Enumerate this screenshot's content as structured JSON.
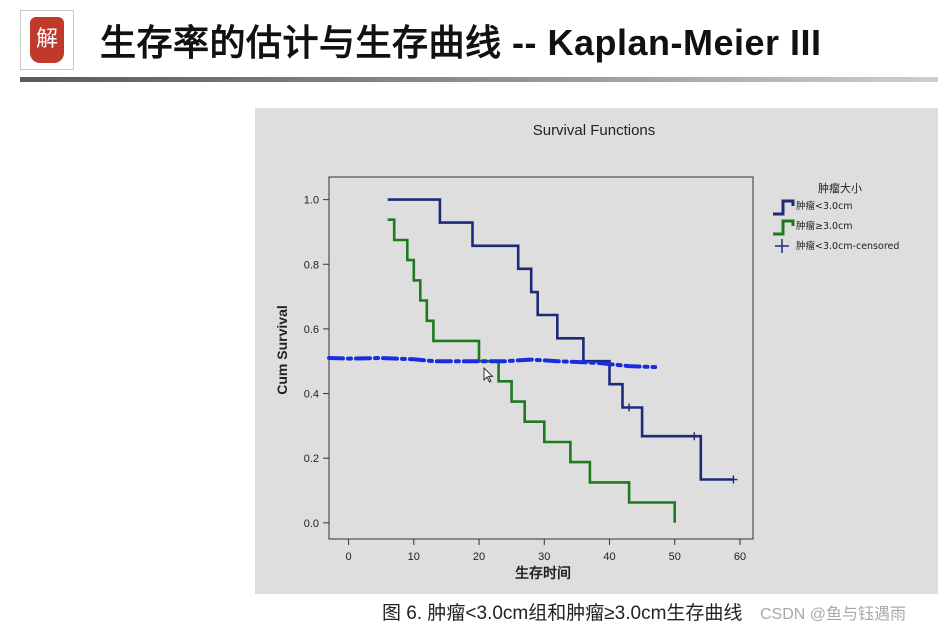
{
  "slide": {
    "title": "生存率的估计与生存曲线 -- Kaplan-Meier III",
    "logo_text": "解",
    "caption": "图 6. 肿瘤<3.0cm组和肿瘤≥3.0cm生存曲线",
    "watermark": "CSDN @鱼与钰遇雨",
    "colors": {
      "underline": "#7a7a7a",
      "panel_bg": "#dedede",
      "annotation": "#1a2be0"
    }
  },
  "chart_data": {
    "type": "line",
    "title": "Survival Functions",
    "xlabel": "生存时间",
    "ylabel": "Cum Survival",
    "xlim": [
      -3,
      62
    ],
    "ylim": [
      -0.05,
      1.07
    ],
    "xticks": [
      0,
      10,
      20,
      30,
      40,
      50,
      60
    ],
    "yticks": [
      0.0,
      0.2,
      0.4,
      0.6,
      0.8,
      1.0
    ],
    "legend": {
      "title": "肿瘤大小",
      "placement": "right",
      "entries": [
        "肿瘤<3.0cm",
        "肿瘤≥3.0cm",
        "肿瘤<3.0cm-censored"
      ]
    },
    "series": [
      {
        "name": "肿瘤<3.0cm",
        "color": "#1c2a7a",
        "style": "step",
        "points": [
          [
            6,
            1.0
          ],
          [
            14,
            1.0
          ],
          [
            14,
            0.929
          ],
          [
            19,
            0.929
          ],
          [
            19,
            0.857
          ],
          [
            26,
            0.857
          ],
          [
            26,
            0.786
          ],
          [
            28,
            0.786
          ],
          [
            28,
            0.714
          ],
          [
            29,
            0.714
          ],
          [
            29,
            0.643
          ],
          [
            32,
            0.643
          ],
          [
            32,
            0.571
          ],
          [
            36,
            0.571
          ],
          [
            36,
            0.5
          ],
          [
            40,
            0.5
          ],
          [
            40,
            0.429
          ],
          [
            42,
            0.429
          ],
          [
            42,
            0.357
          ],
          [
            45,
            0.357
          ],
          [
            45,
            0.268
          ],
          [
            54,
            0.268
          ],
          [
            54,
            0.134
          ],
          [
            59,
            0.134
          ]
        ]
      },
      {
        "name": "肿瘤≥3.0cm",
        "color": "#1e7a1e",
        "style": "step",
        "points": [
          [
            6,
            0.938
          ],
          [
            7,
            0.938
          ],
          [
            7,
            0.875
          ],
          [
            9,
            0.875
          ],
          [
            9,
            0.813
          ],
          [
            10,
            0.813
          ],
          [
            10,
            0.75
          ],
          [
            11,
            0.75
          ],
          [
            11,
            0.688
          ],
          [
            12,
            0.688
          ],
          [
            12,
            0.625
          ],
          [
            13,
            0.625
          ],
          [
            13,
            0.563
          ],
          [
            20,
            0.563
          ],
          [
            20,
            0.5
          ],
          [
            23,
            0.5
          ],
          [
            23,
            0.438
          ],
          [
            25,
            0.438
          ],
          [
            25,
            0.375
          ],
          [
            27,
            0.375
          ],
          [
            27,
            0.313
          ],
          [
            30,
            0.313
          ],
          [
            30,
            0.25
          ],
          [
            34,
            0.25
          ],
          [
            34,
            0.188
          ],
          [
            37,
            0.188
          ],
          [
            37,
            0.125
          ],
          [
            43,
            0.125
          ],
          [
            43,
            0.063
          ],
          [
            50,
            0.063
          ],
          [
            50,
            0.0
          ]
        ]
      },
      {
        "name": "肿瘤<3.0cm-censored",
        "color": "#1c2a7a",
        "style": "marker",
        "points": [
          [
            43,
            0.357
          ],
          [
            53,
            0.268
          ],
          [
            59,
            0.134
          ]
        ]
      }
    ],
    "annotation": {
      "type": "hand-drawn dashed line",
      "color": "#1a2be0",
      "points": [
        [
          -3,
          0.51
        ],
        [
          0,
          0.508
        ],
        [
          5,
          0.51
        ],
        [
          10,
          0.506
        ],
        [
          13,
          0.5
        ],
        [
          18,
          0.5
        ],
        [
          24,
          0.5
        ],
        [
          28,
          0.505
        ],
        [
          32,
          0.5
        ],
        [
          38,
          0.495
        ],
        [
          43,
          0.485
        ],
        [
          47,
          0.482
        ]
      ]
    }
  }
}
